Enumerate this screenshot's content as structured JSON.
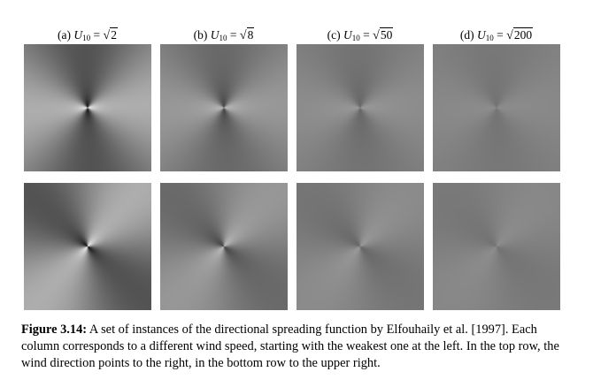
{
  "columns": [
    {
      "tag": "(a)",
      "var": "U",
      "sub": "10",
      "eq": " = ",
      "radicand": "2",
      "speed_sq": 2
    },
    {
      "tag": "(b)",
      "var": "U",
      "sub": "10",
      "eq": " = ",
      "radicand": "8",
      "speed_sq": 8
    },
    {
      "tag": "(c)",
      "var": "U",
      "sub": "10",
      "eq": " = ",
      "radicand": "50",
      "speed_sq": 50
    },
    {
      "tag": "(d)",
      "var": "U",
      "sub": "10",
      "eq": " = ",
      "radicand": "200",
      "speed_sq": 200
    }
  ],
  "rows": [
    {
      "wind_direction_deg": 0
    },
    {
      "wind_direction_deg": 45
    }
  ],
  "caption": {
    "label": "Figure 3.14:",
    "text": " A set of instances of the directional spreading function by Elfouhaily et al. [1997]. Each column corresponds to a different wind speed, starting with the weakest one at the left. In the top row, the wind direction points to the right, in the bottom row to the upper right."
  }
}
